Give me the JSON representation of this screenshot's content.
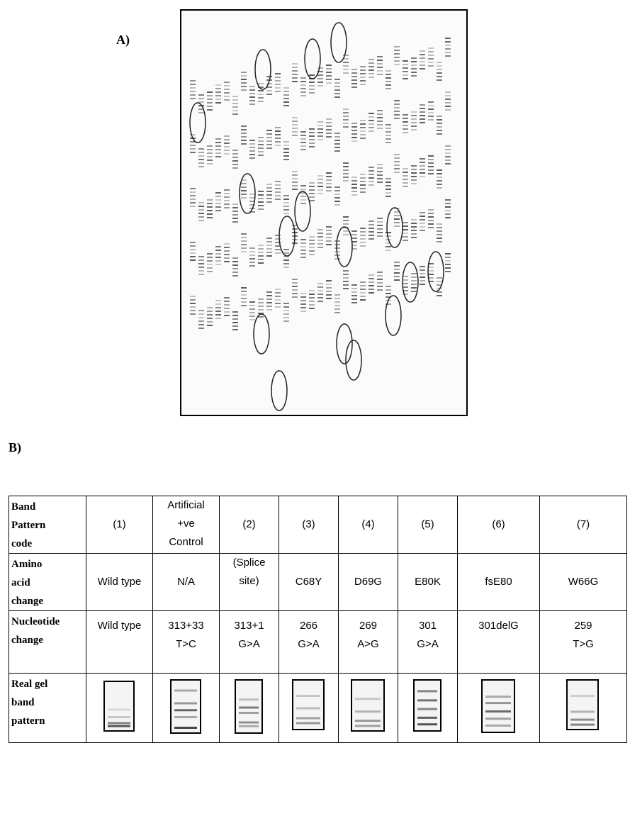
{
  "panels": {
    "a_label": "A)",
    "b_label": "B)"
  },
  "table": {
    "row_headers": [
      [
        "Band",
        "Pattern",
        "code"
      ],
      [
        "Amino",
        "acid",
        "change"
      ],
      [
        "Nucleotide",
        "change"
      ],
      [
        "Real gel",
        "band",
        "pattern"
      ]
    ],
    "columns": [
      {
        "code": [
          "(1)"
        ],
        "amino": [
          "Wild type"
        ],
        "nucleotide": [
          "Wild type"
        ]
      },
      {
        "code": [
          "Artificial",
          "+ve",
          "Control"
        ],
        "amino": [
          "N/A"
        ],
        "nucleotide": [
          "313+33",
          "T>C"
        ]
      },
      {
        "code": [
          "(2)"
        ],
        "amino": [
          "(Splice",
          "site)"
        ],
        "nucleotide": [
          "313+1",
          "G>A"
        ]
      },
      {
        "code": [
          "(3)"
        ],
        "amino": [
          "C68Y"
        ],
        "nucleotide": [
          "266",
          "G>A"
        ]
      },
      {
        "code": [
          "(4)"
        ],
        "amino": [
          "D69G"
        ],
        "nucleotide": [
          "269",
          "A>G"
        ]
      },
      {
        "code": [
          "(5)"
        ],
        "amino": [
          "E80K"
        ],
        "nucleotide": [
          "301",
          "G>A"
        ]
      },
      {
        "code": [
          "(6)"
        ],
        "amino": [
          "fsE80"
        ],
        "nucleotide": [
          "301delG"
        ]
      },
      {
        "code": [
          "(7)"
        ],
        "amino": [
          "W66G"
        ],
        "nucleotide": [
          "259",
          "T>G"
        ]
      }
    ]
  },
  "colors": {
    "gel_band": "#3a3a3a",
    "gel_circle": "#222222"
  }
}
